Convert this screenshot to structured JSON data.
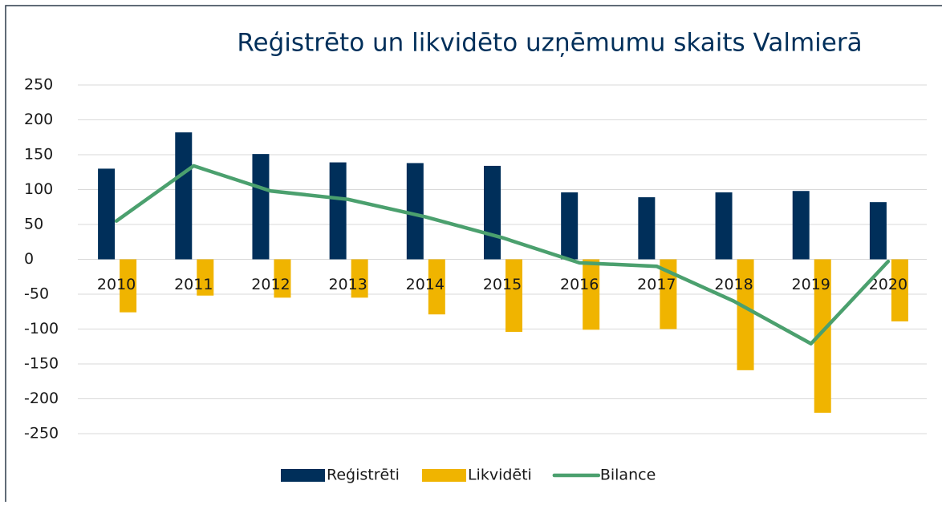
{
  "chart_data": {
    "type": "bar_line",
    "title": "Reģistrēto un likvidēto uzņēmumu skaits Valmierā",
    "categories": [
      "2010",
      "2011",
      "2012",
      "2013",
      "2014",
      "2015",
      "2016",
      "2017",
      "2018",
      "2019",
      "2020"
    ],
    "series": [
      {
        "name": "Reģistrēti",
        "color": "#002f5a",
        "kind": "bar",
        "values": [
          130,
          182,
          151,
          139,
          138,
          134,
          96,
          89,
          96,
          98,
          82
        ]
      },
      {
        "name": "Likvidēti",
        "color": "#f0b400",
        "kind": "bar",
        "values": [
          -76,
          -52,
          -55,
          -55,
          -79,
          -104,
          -101,
          -100,
          -159,
          -220,
          -89
        ]
      },
      {
        "name": "Bilance",
        "color": "#4ba06e",
        "kind": "line",
        "values": [
          55,
          134,
          98,
          86,
          61,
          31,
          -5,
          -10,
          -60,
          -121,
          -3
        ]
      }
    ],
    "ylim": [
      -250,
      250
    ],
    "yticks": [
      250,
      200,
      150,
      100,
      50,
      0,
      -50,
      -100,
      -150,
      -200,
      -250
    ],
    "grid": true,
    "legend": "bottom"
  }
}
